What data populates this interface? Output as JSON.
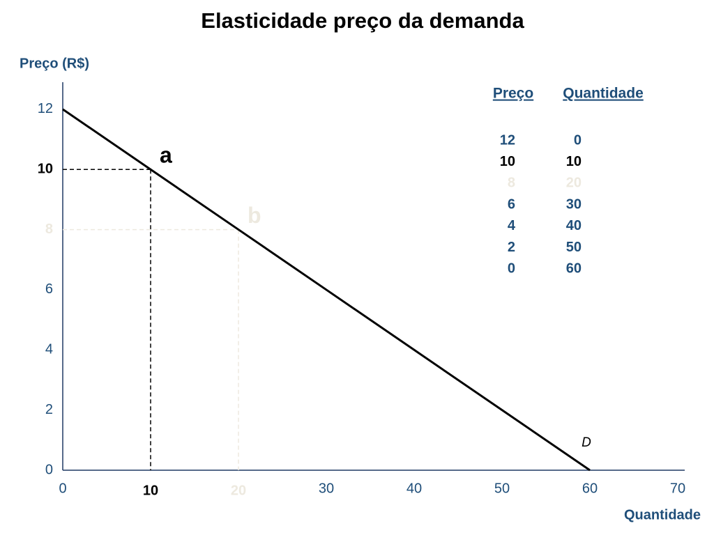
{
  "chart_data": {
    "type": "line",
    "title": "Elasticidade preço da demanda",
    "y_label": "Preço (R$)",
    "x_label": "Quantidade",
    "x": [
      0,
      10,
      20,
      30,
      40,
      50,
      60
    ],
    "values": [
      12,
      10,
      8,
      6,
      4,
      2,
      0
    ],
    "color": "#000000",
    "xlim": [
      0,
      70
    ],
    "ylim": [
      0,
      12.9
    ],
    "xticks": [
      0,
      10,
      20,
      30,
      40,
      50,
      60,
      70
    ],
    "yticks": [
      0,
      2,
      4,
      6,
      8,
      10,
      12
    ],
    "grid": false,
    "curve_label": "D",
    "table_columns": [
      "Preço",
      "Quantidade"
    ],
    "annotations": [
      {
        "text": "a",
        "x": 10,
        "y": 10,
        "color": "#000000"
      },
      {
        "text": "b",
        "x": 20,
        "y": 8,
        "color": "#ede9df"
      }
    ]
  }
}
